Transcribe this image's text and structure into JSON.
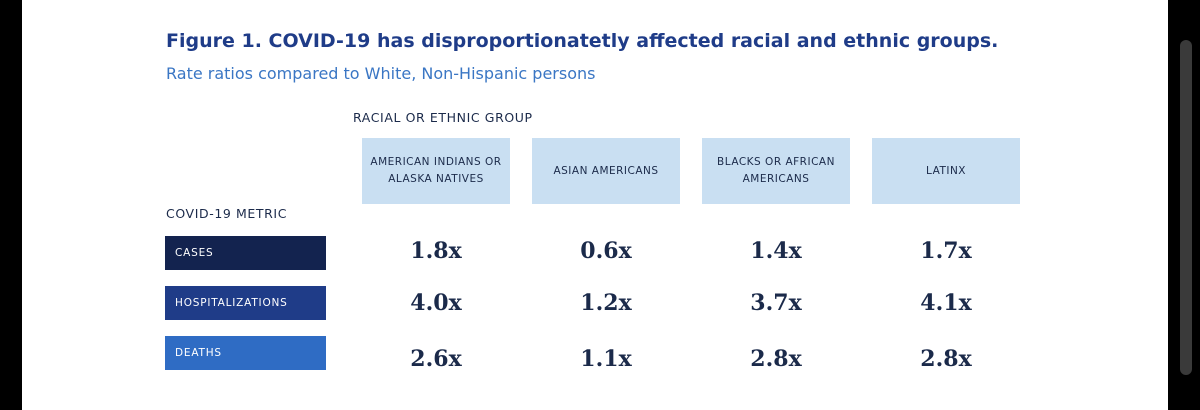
{
  "chart_data": {
    "type": "table",
    "title": "Figure 1. COVID-19 has disproportionatetly affected racial and ethnic groups.",
    "subtitle": "Rate ratios compared to White, Non-Hispanic persons",
    "column_group_label": "RACIAL OR ETHNIC GROUP",
    "row_group_label": "COVID-19 METRIC",
    "columns": [
      "AMERICAN INDIANS OR ALASKA NATIVES",
      "ASIAN AMERICANS",
      "BLACKS OR AFRICAN AMERICANS",
      "LATINX"
    ],
    "rows": [
      {
        "label": "CASES",
        "color": "#13234f",
        "values": [
          "1.8x",
          "0.6x",
          "1.4x",
          "1.7x"
        ]
      },
      {
        "label": "HOSPITALIZATIONS",
        "color": "#1f3c88",
        "values": [
          "4.0x",
          "1.2x",
          "3.7x",
          "4.1x"
        ]
      },
      {
        "label": "DEATHS",
        "color": "#2f6cc4",
        "values": [
          "2.6x",
          "1.1x",
          "2.8x",
          "2.8x"
        ]
      }
    ]
  }
}
